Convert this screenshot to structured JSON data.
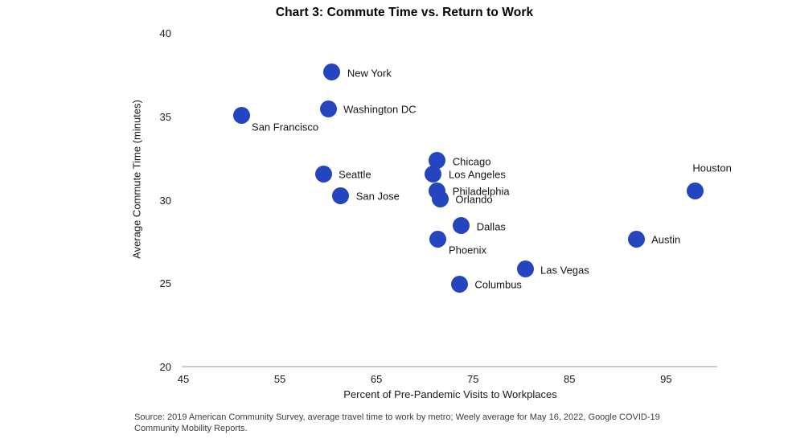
{
  "chart_data": {
    "type": "scatter",
    "title": "Chart 3: Commute Time vs. Return to Work",
    "xlabel": "Percent of Pre-Pandemic Visits to Workplaces",
    "ylabel": "Average Commute Time (minutes)",
    "xlim": [
      45,
      100.3
    ],
    "ylim": [
      20,
      40
    ],
    "xticks": [
      45,
      55,
      65,
      75,
      85,
      95
    ],
    "yticks": [
      20,
      25,
      30,
      35,
      40
    ],
    "grid": false,
    "legend": false,
    "marker_color": "#2444c0",
    "axis_line_color": "#cccccc",
    "points": [
      {
        "city": "New York",
        "x": 60.4,
        "y": 37.7,
        "label_pos": "right"
      },
      {
        "city": "Washington DC",
        "x": 60.0,
        "y": 35.5,
        "label_pos": "right"
      },
      {
        "city": "San Francisco",
        "x": 51.0,
        "y": 35.1,
        "label_pos": "below"
      },
      {
        "city": "Seattle",
        "x": 59.5,
        "y": 31.6,
        "label_pos": "right"
      },
      {
        "city": "San Jose",
        "x": 61.3,
        "y": 30.3,
        "label_pos": "right"
      },
      {
        "city": "Chicago",
        "x": 71.3,
        "y": 32.4,
        "label_pos": "right"
      },
      {
        "city": "Los Angeles",
        "x": 70.9,
        "y": 31.6,
        "label_pos": "right"
      },
      {
        "city": "Philadelphia",
        "x": 71.3,
        "y": 30.6,
        "label_pos": "right"
      },
      {
        "city": "Orlando",
        "x": 71.6,
        "y": 30.1,
        "label_pos": "right"
      },
      {
        "city": "Dallas",
        "x": 73.8,
        "y": 28.5,
        "label_pos": "right"
      },
      {
        "city": "Phoenix",
        "x": 71.4,
        "y": 27.7,
        "label_pos": "below"
      },
      {
        "city": "Las Vegas",
        "x": 80.4,
        "y": 25.9,
        "label_pos": "right"
      },
      {
        "city": "Columbus",
        "x": 73.6,
        "y": 25.0,
        "label_pos": "right"
      },
      {
        "city": "Austin",
        "x": 91.9,
        "y": 27.7,
        "label_pos": "right"
      },
      {
        "city": "Houston",
        "x": 98.0,
        "y": 30.6,
        "label_pos": "above"
      }
    ]
  },
  "footer": {
    "source_note": "Source: 2019 American Community Survey, average travel time to work by metro; Weely average for May 16, 2022, Google COVID-19 Community Mobility Reports."
  }
}
